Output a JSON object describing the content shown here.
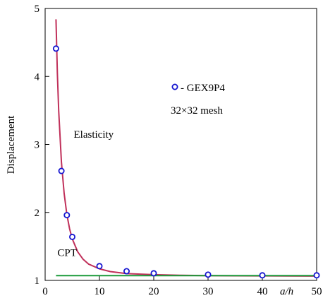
{
  "chart_data": {
    "type": "line",
    "title": "",
    "xlabel": "a/h",
    "ylabel": "Displacement",
    "xlim": [
      0,
      50
    ],
    "ylim": [
      1,
      5
    ],
    "x_ticks": [
      0,
      10,
      20,
      30,
      40,
      50
    ],
    "y_ticks": [
      1,
      2,
      3,
      4,
      5
    ],
    "x_tick_labels": [
      "0",
      "10",
      "20",
      "30",
      "40",
      "50"
    ],
    "y_tick_labels": [
      "1",
      "2",
      "3",
      "4",
      "5"
    ],
    "grid": false,
    "legend": {
      "placement": "upper-right",
      "entry_label": "- GEX9P4",
      "note": "32×32 mesh"
    },
    "annotations": [
      {
        "text": "Elasticity",
        "x": 5,
        "y": 3.1
      },
      {
        "text": "CPT",
        "x": 2,
        "y": 1.36
      }
    ],
    "series": [
      {
        "kind": "curve",
        "color": "#c0305a",
        "x": [
          2,
          2.25,
          2.5,
          3,
          3.5,
          4,
          4.5,
          5,
          6,
          7,
          8,
          10,
          12,
          15,
          20,
          25,
          30,
          35,
          40,
          45,
          50
        ],
        "y": [
          4.84,
          4.05,
          3.49,
          2.74,
          2.28,
          1.97,
          1.76,
          1.61,
          1.42,
          1.31,
          1.24,
          1.17,
          1.13,
          1.1,
          1.085,
          1.075,
          1.07,
          1.068,
          1.066,
          1.065,
          1.064
        ]
      },
      {
        "kind": "curve",
        "color": "#1a9a3a",
        "x": [
          2,
          50
        ],
        "y": [
          1.07,
          1.07
        ]
      },
      {
        "name": "- GEX9P4",
        "kind": "markers",
        "color": "#1515d0",
        "x": [
          2,
          3,
          4,
          5,
          10,
          15,
          20,
          30,
          40,
          50
        ],
        "y": [
          4.41,
          2.61,
          1.96,
          1.64,
          1.21,
          1.135,
          1.105,
          1.085,
          1.075,
          1.075
        ]
      }
    ]
  }
}
